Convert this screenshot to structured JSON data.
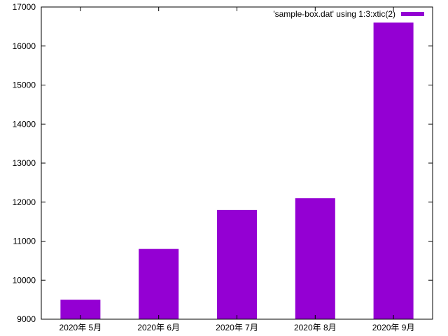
{
  "chart_data": {
    "type": "bar",
    "categories": [
      "2020年 5月",
      "2020年 6月",
      "2020年 7月",
      "2020年 8月",
      "2020年 9月"
    ],
    "series": [
      {
        "name": "'sample-box.dat' using 1:3:xtic(2)",
        "values": [
          9500,
          10800,
          11800,
          12100,
          16600
        ],
        "color": "#9400d3"
      }
    ],
    "ylim": [
      9000,
      17000
    ],
    "yticks": [
      9000,
      10000,
      11000,
      12000,
      13000,
      14000,
      15000,
      16000,
      17000
    ],
    "title": "",
    "xlabel": "",
    "ylabel": "",
    "grid": false,
    "legend_position": "top-right"
  }
}
